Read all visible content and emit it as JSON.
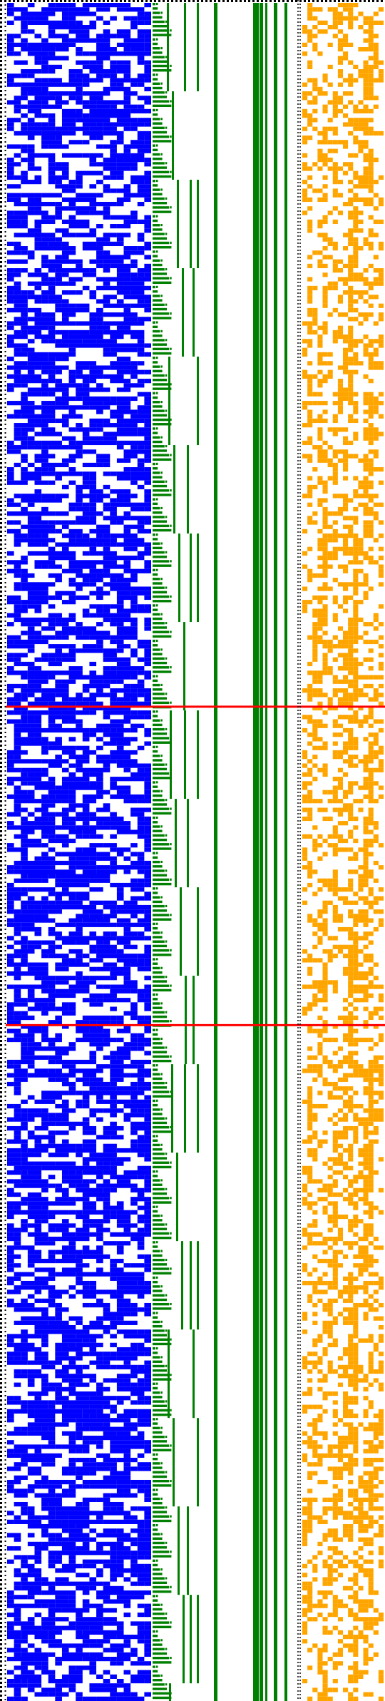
{
  "colors": {
    "background": "#ffffff",
    "dotted_border": "#000000",
    "bits": "#0000ff",
    "staircase": "#008000",
    "columns": "#008000",
    "carries": "#ffa500",
    "markers": "#ff0000"
  },
  "diagram": {
    "rows": 384,
    "bit_columns": 21,
    "staircase_period": 16,
    "marker_rows": [
      159,
      231
    ],
    "dotted_border_sides": [
      "top",
      "left"
    ],
    "divider_columns_dotted": 2
  }
}
